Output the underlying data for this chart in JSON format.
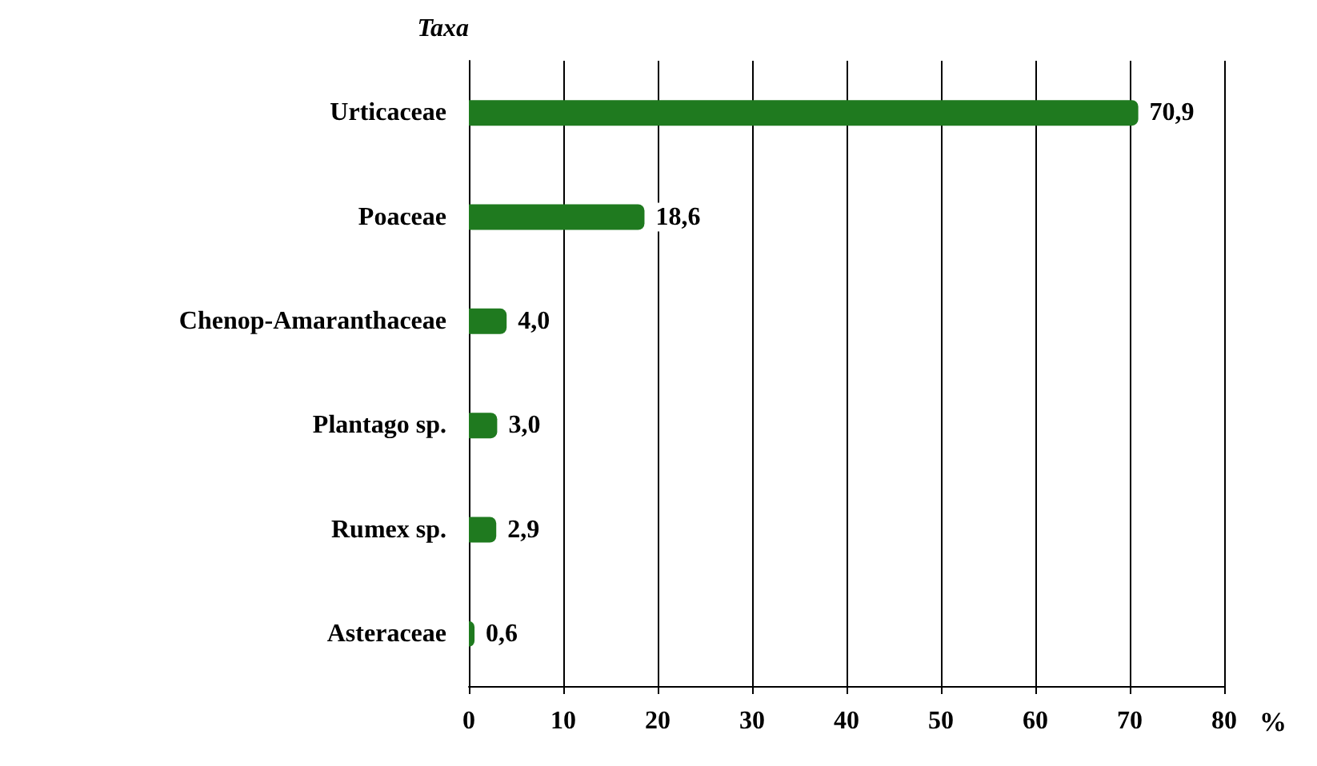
{
  "chart_data": {
    "type": "bar",
    "orientation": "horizontal",
    "ylabel": "Taxa",
    "xlabel": "%",
    "categories": [
      "Urticaceae",
      "Poaceae",
      "Chenop-Amaranthaceae",
      "Plantago sp.",
      "Rumex sp.",
      "Asteraceae"
    ],
    "values": [
      70.9,
      18.6,
      4.0,
      3.0,
      2.9,
      0.6
    ],
    "value_labels": [
      "70,9",
      "18,6",
      "4,0",
      "3,0",
      "2,9",
      "0,6"
    ],
    "color": "#1f7a1f",
    "xlim": [
      0,
      80
    ],
    "xticks": [
      0,
      10,
      20,
      30,
      40,
      50,
      60,
      70,
      80
    ],
    "grid": "x"
  }
}
